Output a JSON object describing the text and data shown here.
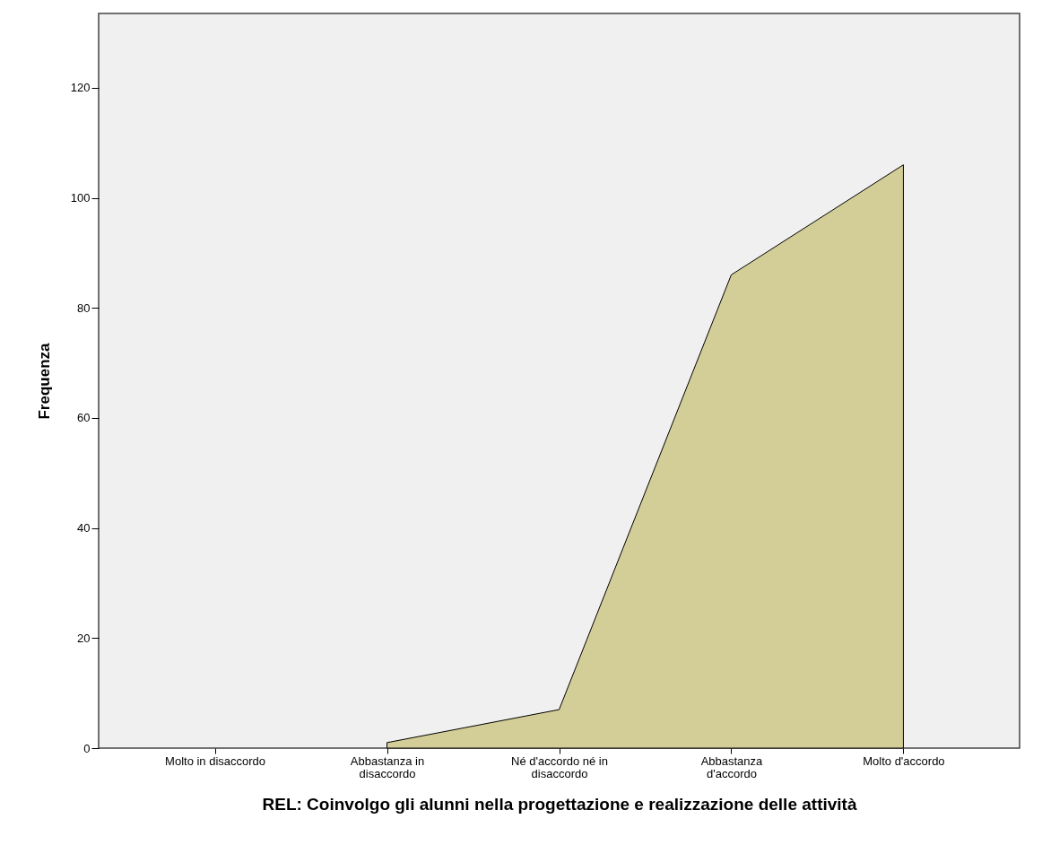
{
  "chart_data": {
    "type": "area",
    "xlabel": "REL: Coinvolgo gli alunni nella progettazione e realizzazione delle attività",
    "ylabel": "Frequenza",
    "categories": [
      "Molto in disaccordo",
      "Abbastanza in disaccordo",
      "Né d'accordo né in disaccordo",
      "Abbastanza d'accordo",
      "Molto d'accordo"
    ],
    "values": [
      null,
      1,
      7,
      86,
      106
    ],
    "color": "#d3ce97",
    "ylim": [
      0,
      133.5
    ],
    "yticks": [
      0,
      20,
      40,
      60,
      80,
      100,
      120
    ],
    "grid": false
  }
}
